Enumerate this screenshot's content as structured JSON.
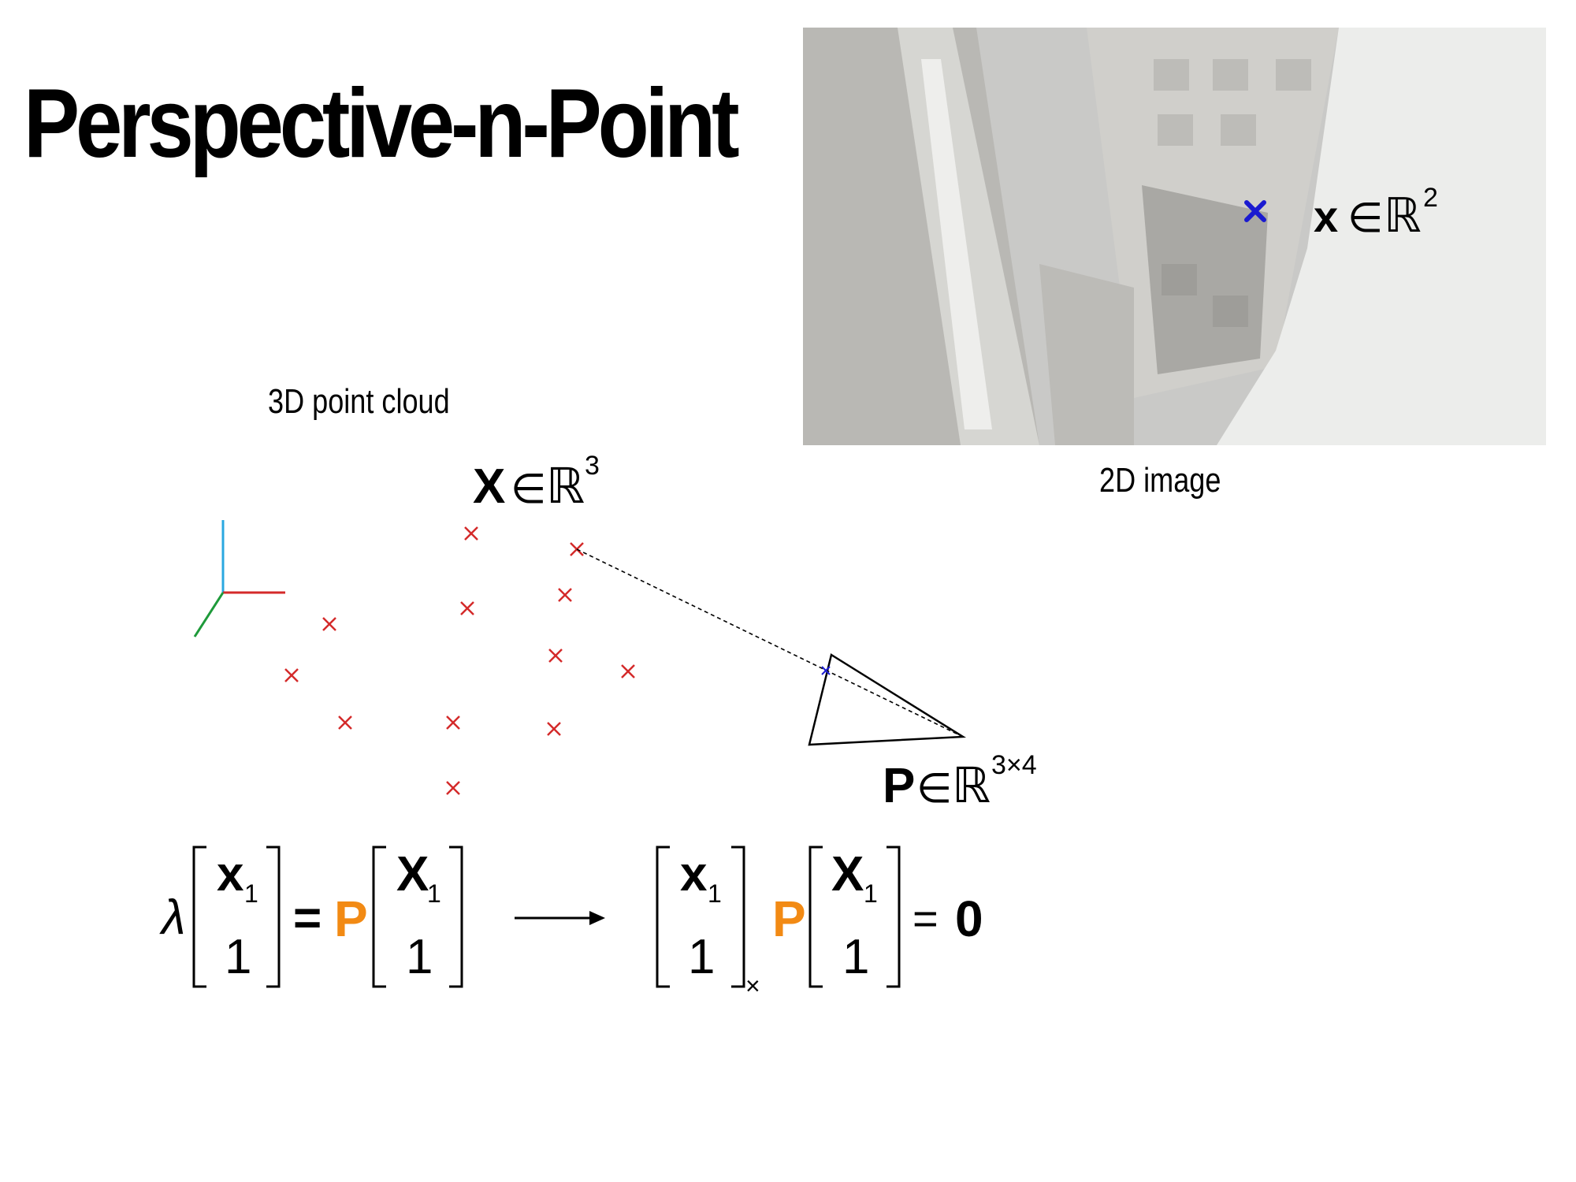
{
  "slide": {
    "title": "Perspective-n-Point",
    "caption_3d": "3D point cloud",
    "caption_2d": "2D image"
  },
  "labels": {
    "bold_x_upper": "X",
    "bold_x_lower": "x",
    "bold_p": "P",
    "element_of": "∈",
    "reals": "ℝ",
    "dim_3": "3",
    "dim_2": "2",
    "dim_3x4": "3×4"
  },
  "equation_left": {
    "lambda": "λ",
    "lhs_top": "x",
    "lhs_sub": "1",
    "lhs_bottom": "1",
    "equals": "=",
    "P": "P",
    "rhs_top": "X",
    "rhs_sub": "1",
    "rhs_bottom": "1"
  },
  "equation_right": {
    "m1_top": "x",
    "m1_sub": "1",
    "m1_bottom": "1",
    "cross_sub": "×",
    "P": "P",
    "m2_top": "X",
    "m2_sub": "1",
    "m2_bottom": "1",
    "equals": "=",
    "zero": "0"
  },
  "colors": {
    "point": "#d42a2a",
    "projected_point": "#1a1ad0",
    "P_orange": "#f28a14",
    "axis_x": "#d42a2a",
    "axis_y": "#2aa8e0",
    "axis_z": "#1e9a3a"
  }
}
